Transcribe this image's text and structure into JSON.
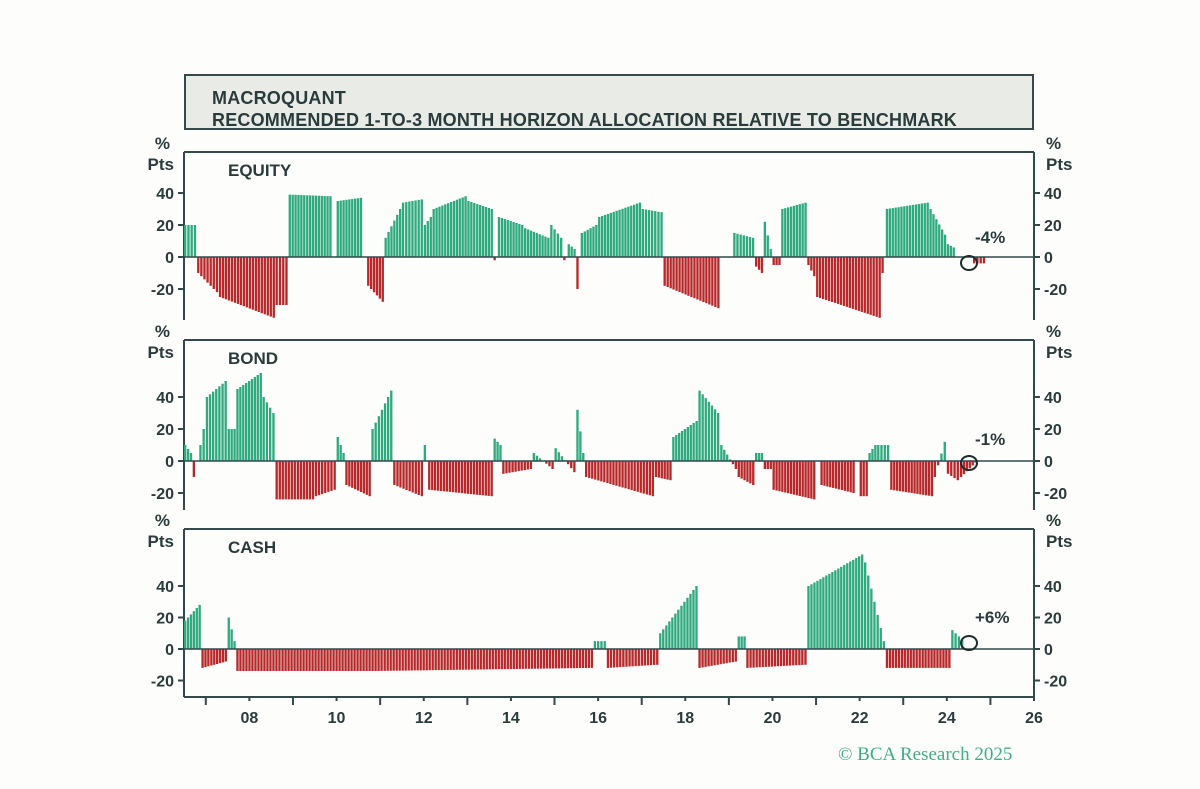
{
  "title": {
    "line1": "MACROQUANT",
    "line2": "RECOMMENDED 1-TO-3 MONTH HORIZON ALLOCATION RELATIVE TO BENCHMARK"
  },
  "copyright": "© BCA Research 2025",
  "colors": {
    "positive": "#2faa7f",
    "negative": "#b8282a",
    "axis": "#33494a",
    "text": "#2a3b3c",
    "title_bg": "#e9ebe7",
    "brand": "#3fae86"
  },
  "chart_data": [
    {
      "type": "bar",
      "panel": "EQUITY",
      "unit_line1": "%",
      "unit_line2": "Pts",
      "annotation": "-4%",
      "last_value": -4,
      "ylim": [
        -40,
        60
      ],
      "yticks": [
        -20,
        0,
        20,
        40
      ],
      "xlim": [
        2006.5,
        2026
      ],
      "series": [
        {
          "segments": [
            {
              "x0": 2006.5,
              "x1": 2006.8,
              "v0": 20,
              "v1": 20
            },
            {
              "x0": 2006.8,
              "x1": 2007.3,
              "v0": -10,
              "v1": -22
            },
            {
              "x0": 2007.3,
              "x1": 2008.6,
              "v0": -25,
              "v1": -38
            },
            {
              "x0": 2008.6,
              "x1": 2008.9,
              "v0": -30,
              "v1": -30
            },
            {
              "x0": 2008.9,
              "x1": 2009.9,
              "v0": 39,
              "v1": 38
            },
            {
              "x0": 2009.9,
              "x1": 2010.0,
              "v0": 0,
              "v1": 0
            },
            {
              "x0": 2010.0,
              "x1": 2010.6,
              "v0": 35,
              "v1": 37
            },
            {
              "x0": 2010.6,
              "x1": 2010.7,
              "v0": 0,
              "v1": 0
            },
            {
              "x0": 2010.7,
              "x1": 2011.1,
              "v0": -18,
              "v1": -28
            },
            {
              "x0": 2011.1,
              "x1": 2011.5,
              "v0": 12,
              "v1": 30
            },
            {
              "x0": 2011.5,
              "x1": 2012.0,
              "v0": 34,
              "v1": 36
            },
            {
              "x0": 2012.0,
              "x1": 2012.2,
              "v0": 20,
              "v1": 25
            },
            {
              "x0": 2012.2,
              "x1": 2013.0,
              "v0": 30,
              "v1": 38
            },
            {
              "x0": 2013.0,
              "x1": 2013.6,
              "v0": 35,
              "v1": 30
            },
            {
              "x0": 2013.6,
              "x1": 2013.7,
              "v0": -2,
              "v1": -2
            },
            {
              "x0": 2013.7,
              "x1": 2014.3,
              "v0": 25,
              "v1": 20
            },
            {
              "x0": 2014.3,
              "x1": 2014.9,
              "v0": 18,
              "v1": 12
            },
            {
              "x0": 2014.9,
              "x1": 2015.2,
              "v0": 20,
              "v1": 12
            },
            {
              "x0": 2015.2,
              "x1": 2015.3,
              "v0": -2,
              "v1": -2
            },
            {
              "x0": 2015.3,
              "x1": 2015.5,
              "v0": 8,
              "v1": 5
            },
            {
              "x0": 2015.5,
              "x1": 2015.6,
              "v0": -20,
              "v1": -20
            },
            {
              "x0": 2015.6,
              "x1": 2016.0,
              "v0": 15,
              "v1": 20
            },
            {
              "x0": 2016.0,
              "x1": 2017.0,
              "v0": 25,
              "v1": 34
            },
            {
              "x0": 2017.0,
              "x1": 2017.5,
              "v0": 30,
              "v1": 28
            },
            {
              "x0": 2017.5,
              "x1": 2018.8,
              "v0": -18,
              "v1": -32
            },
            {
              "x0": 2018.8,
              "x1": 2019.1,
              "v0": 0,
              "v1": 0
            },
            {
              "x0": 2019.1,
              "x1": 2019.6,
              "v0": 15,
              "v1": 12
            },
            {
              "x0": 2019.6,
              "x1": 2019.8,
              "v0": -6,
              "v1": -10
            },
            {
              "x0": 2019.8,
              "x1": 2020.0,
              "v0": 22,
              "v1": 5
            },
            {
              "x0": 2020.0,
              "x1": 2020.2,
              "v0": -5,
              "v1": -5
            },
            {
              "x0": 2020.2,
              "x1": 2020.8,
              "v0": 30,
              "v1": 34
            },
            {
              "x0": 2020.8,
              "x1": 2021.0,
              "v0": -5,
              "v1": -12
            },
            {
              "x0": 2021.0,
              "x1": 2022.5,
              "v0": -25,
              "v1": -38
            },
            {
              "x0": 2022.5,
              "x1": 2022.6,
              "v0": -10,
              "v1": -10
            },
            {
              "x0": 2022.6,
              "x1": 2023.6,
              "v0": 30,
              "v1": 34
            },
            {
              "x0": 2023.6,
              "x1": 2024.0,
              "v0": 30,
              "v1": 14
            },
            {
              "x0": 2024.0,
              "x1": 2024.2,
              "v0": 8,
              "v1": 6
            },
            {
              "x0": 2024.2,
              "x1": 2024.6,
              "v0": 0,
              "v1": 0
            },
            {
              "x0": 2024.6,
              "x1": 2024.9,
              "v0": -4,
              "v1": -4
            }
          ]
        }
      ]
    },
    {
      "type": "bar",
      "panel": "BOND",
      "unit_line1": "%",
      "unit_line2": "Pts",
      "annotation": "-1%",
      "last_value": -1,
      "ylim": [
        -30,
        60
      ],
      "yticks": [
        -20,
        0,
        20,
        40
      ],
      "xlim": [
        2006.5,
        2026
      ],
      "series": [
        {
          "segments": [
            {
              "x0": 2006.5,
              "x1": 2006.7,
              "v0": 10,
              "v1": 5
            },
            {
              "x0": 2006.7,
              "x1": 2007.0,
              "v0": -10,
              "v1": 20
            },
            {
              "x0": 2007.0,
              "x1": 2007.5,
              "v0": 40,
              "v1": 50
            },
            {
              "x0": 2007.5,
              "x1": 2007.7,
              "v0": 20,
              "v1": 20
            },
            {
              "x0": 2007.7,
              "x1": 2008.3,
              "v0": 45,
              "v1": 55
            },
            {
              "x0": 2008.3,
              "x1": 2008.6,
              "v0": 40,
              "v1": 30
            },
            {
              "x0": 2008.6,
              "x1": 2009.5,
              "v0": -24,
              "v1": -24
            },
            {
              "x0": 2009.5,
              "x1": 2010.0,
              "v0": -22,
              "v1": -18
            },
            {
              "x0": 2010.0,
              "x1": 2010.2,
              "v0": 15,
              "v1": 5
            },
            {
              "x0": 2010.2,
              "x1": 2010.8,
              "v0": -15,
              "v1": -22
            },
            {
              "x0": 2010.8,
              "x1": 2011.3,
              "v0": 20,
              "v1": 44
            },
            {
              "x0": 2011.3,
              "x1": 2012.0,
              "v0": -15,
              "v1": -22
            },
            {
              "x0": 2012.0,
              "x1": 2012.1,
              "v0": 10,
              "v1": 10
            },
            {
              "x0": 2012.1,
              "x1": 2013.6,
              "v0": -18,
              "v1": -22
            },
            {
              "x0": 2013.6,
              "x1": 2013.8,
              "v0": 14,
              "v1": 10
            },
            {
              "x0": 2013.8,
              "x1": 2014.5,
              "v0": -8,
              "v1": -5
            },
            {
              "x0": 2014.5,
              "x1": 2015.0,
              "v0": 5,
              "v1": -5
            },
            {
              "x0": 2015.0,
              "x1": 2015.5,
              "v0": 8,
              "v1": -7
            },
            {
              "x0": 2015.5,
              "x1": 2015.7,
              "v0": 32,
              "v1": 5
            },
            {
              "x0": 2015.7,
              "x1": 2017.3,
              "v0": -10,
              "v1": -22
            },
            {
              "x0": 2017.3,
              "x1": 2017.7,
              "v0": -10,
              "v1": -12
            },
            {
              "x0": 2017.7,
              "x1": 2018.3,
              "v0": 15,
              "v1": 25
            },
            {
              "x0": 2018.3,
              "x1": 2018.8,
              "v0": 44,
              "v1": 30
            },
            {
              "x0": 2018.8,
              "x1": 2019.2,
              "v0": 10,
              "v1": -5
            },
            {
              "x0": 2019.2,
              "x1": 2019.6,
              "v0": -10,
              "v1": -15
            },
            {
              "x0": 2019.6,
              "x1": 2019.8,
              "v0": 5,
              "v1": 5
            },
            {
              "x0": 2019.8,
              "x1": 2020.0,
              "v0": -5,
              "v1": -5
            },
            {
              "x0": 2020.0,
              "x1": 2021.0,
              "v0": -18,
              "v1": -24
            },
            {
              "x0": 2021.0,
              "x1": 2021.1,
              "v0": 0,
              "v1": 0
            },
            {
              "x0": 2021.1,
              "x1": 2021.9,
              "v0": -15,
              "v1": -20
            },
            {
              "x0": 2021.9,
              "x1": 2022.0,
              "v0": 0,
              "v1": 0
            },
            {
              "x0": 2022.0,
              "x1": 2022.2,
              "v0": -22,
              "v1": -22
            },
            {
              "x0": 2022.2,
              "x1": 2022.4,
              "v0": 5,
              "v1": 10
            },
            {
              "x0": 2022.4,
              "x1": 2022.7,
              "v0": 10,
              "v1": 10
            },
            {
              "x0": 2022.7,
              "x1": 2023.7,
              "v0": -18,
              "v1": -22
            },
            {
              "x0": 2023.7,
              "x1": 2024.0,
              "v0": -10,
              "v1": 12
            },
            {
              "x0": 2024.0,
              "x1": 2024.3,
              "v0": -8,
              "v1": -12
            },
            {
              "x0": 2024.3,
              "x1": 2024.7,
              "v0": -10,
              "v1": -1
            }
          ]
        }
      ]
    },
    {
      "type": "bar",
      "panel": "CASH",
      "unit_line1": "%",
      "unit_line2": "Pts",
      "annotation": "+6%",
      "last_value": 6,
      "ylim": [
        -30,
        70
      ],
      "yticks": [
        -20,
        0,
        20,
        40
      ],
      "xlim": [
        2006.5,
        2026
      ],
      "series": [
        {
          "segments": [
            {
              "x0": 2006.5,
              "x1": 2006.9,
              "v0": 18,
              "v1": 28
            },
            {
              "x0": 2006.9,
              "x1": 2007.5,
              "v0": -12,
              "v1": -8
            },
            {
              "x0": 2007.5,
              "x1": 2007.7,
              "v0": 20,
              "v1": 5
            },
            {
              "x0": 2007.7,
              "x1": 2010.8,
              "v0": -14,
              "v1": -14
            },
            {
              "x0": 2010.8,
              "x1": 2015.9,
              "v0": -14,
              "v1": -12
            },
            {
              "x0": 2015.9,
              "x1": 2016.2,
              "v0": 5,
              "v1": 5
            },
            {
              "x0": 2016.2,
              "x1": 2017.4,
              "v0": -12,
              "v1": -10
            },
            {
              "x0": 2017.4,
              "x1": 2018.3,
              "v0": 10,
              "v1": 40
            },
            {
              "x0": 2018.3,
              "x1": 2019.2,
              "v0": -12,
              "v1": -8
            },
            {
              "x0": 2019.2,
              "x1": 2019.4,
              "v0": 8,
              "v1": 8
            },
            {
              "x0": 2019.4,
              "x1": 2020.8,
              "v0": -12,
              "v1": -10
            },
            {
              "x0": 2020.8,
              "x1": 2022.1,
              "v0": 40,
              "v1": 60
            },
            {
              "x0": 2022.1,
              "x1": 2022.6,
              "v0": 55,
              "v1": 5
            },
            {
              "x0": 2022.6,
              "x1": 2024.1,
              "v0": -12,
              "v1": -12
            },
            {
              "x0": 2024.1,
              "x1": 2024.4,
              "v0": 12,
              "v1": 6
            }
          ]
        }
      ]
    }
  ],
  "x_axis": {
    "ticks": [
      {
        "value": 2008,
        "label": "08"
      },
      {
        "value": 2010,
        "label": "10"
      },
      {
        "value": 2012,
        "label": "12"
      },
      {
        "value": 2014,
        "label": "14"
      },
      {
        "value": 2016,
        "label": "16"
      },
      {
        "value": 2018,
        "label": "18"
      },
      {
        "value": 2020,
        "label": "20"
      },
      {
        "value": 2022,
        "label": "22"
      },
      {
        "value": 2024,
        "label": "24"
      },
      {
        "value": 2026,
        "label": "26"
      }
    ]
  }
}
